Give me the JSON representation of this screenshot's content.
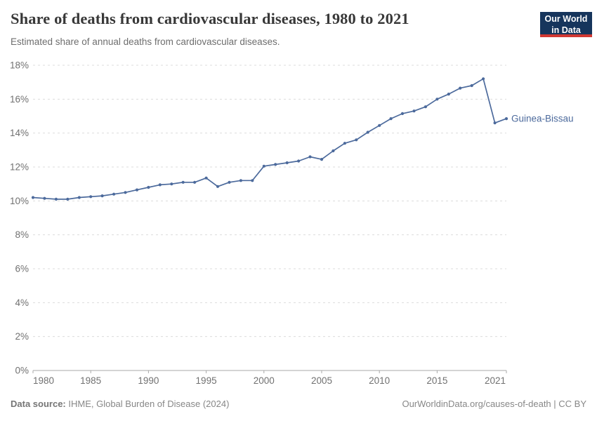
{
  "header": {
    "title": "Share of deaths from cardiovascular diseases, 1980 to 2021",
    "subtitle": "Estimated share of annual deaths from cardiovascular diseases."
  },
  "logo": {
    "line1": "Our World",
    "line2": "in Data",
    "bg_color": "#16355c",
    "accent_color": "#d13832"
  },
  "footer": {
    "source_label": "Data source:",
    "source_text": " IHME, Global Burden of Disease (2024)",
    "right_text": "OurWorldinData.org/causes-of-death | CC BY"
  },
  "chart_data": {
    "type": "line",
    "title": "Share of deaths from cardiovascular diseases, 1980 to 2021",
    "xlabel": "",
    "ylabel": "",
    "xlim": [
      1980,
      2021
    ],
    "ylim": [
      0,
      18
    ],
    "x_ticks": [
      1980,
      1985,
      1990,
      1995,
      2000,
      2005,
      2010,
      2015,
      2021
    ],
    "y_ticks": [
      0,
      2,
      4,
      6,
      8,
      10,
      12,
      14,
      16,
      18
    ],
    "y_tick_suffix": "%",
    "grid": "horizontal-dashed",
    "legend_position": "end-of-line-label",
    "x": [
      1980,
      1981,
      1982,
      1983,
      1984,
      1985,
      1986,
      1987,
      1988,
      1989,
      1990,
      1991,
      1992,
      1993,
      1994,
      1995,
      1996,
      1997,
      1998,
      1999,
      2000,
      2001,
      2002,
      2003,
      2004,
      2005,
      2006,
      2007,
      2008,
      2009,
      2010,
      2011,
      2012,
      2013,
      2014,
      2015,
      2016,
      2017,
      2018,
      2019,
      2020,
      2021
    ],
    "series": [
      {
        "name": "Guinea-Bissau",
        "color": "#4c6a9c",
        "values": [
          10.2,
          10.15,
          10.1,
          10.1,
          10.2,
          10.25,
          10.3,
          10.4,
          10.5,
          10.65,
          10.8,
          10.95,
          11.0,
          11.1,
          11.1,
          11.35,
          10.85,
          11.1,
          11.2,
          11.2,
          12.05,
          12.15,
          12.25,
          12.35,
          12.6,
          12.45,
          12.95,
          13.4,
          13.6,
          14.05,
          14.45,
          14.85,
          15.15,
          15.3,
          15.55,
          16.0,
          16.3,
          16.65,
          16.8,
          17.2,
          14.6,
          14.85
        ]
      }
    ],
    "colors": {
      "gridline": "#dcdcdc",
      "axis": "#a8a8a8",
      "tick_label": "#717171"
    }
  }
}
